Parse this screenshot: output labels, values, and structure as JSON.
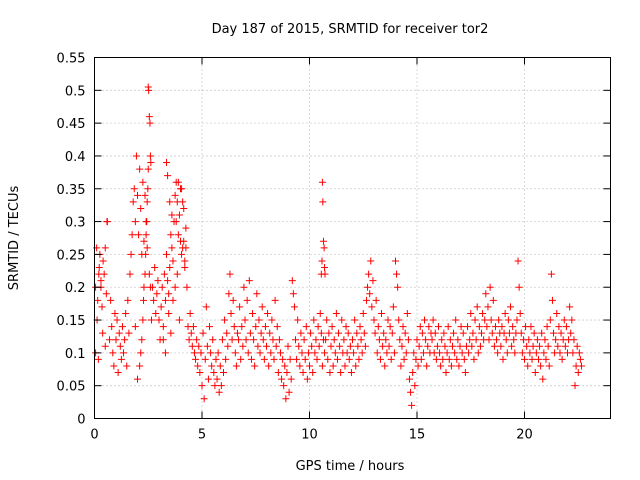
{
  "chart_data": {
    "type": "scatter",
    "title": "Day 187 of 2015, SRMTID for receiver tor2",
    "xlabel": "GPS time / hours",
    "ylabel": "SRMTID / TECUs",
    "xlim": [
      0,
      24
    ],
    "ylim": [
      0,
      0.55
    ],
    "xticks": [
      0,
      5,
      10,
      15,
      20
    ],
    "xtick_labels": [
      "0",
      "5",
      "10",
      "15",
      "20"
    ],
    "yticks": [
      0,
      0.05,
      0.1,
      0.15,
      0.2,
      0.25,
      0.3,
      0.35,
      0.4,
      0.45,
      0.5,
      0.55
    ],
    "ytick_labels": [
      "0",
      "0.05",
      "0.1",
      "0.15",
      "0.2",
      "0.25",
      "0.3",
      "0.35",
      "0.4",
      "0.45",
      "0.5",
      "0.55"
    ],
    "grid": true,
    "marker": "+",
    "color": "#ff0000",
    "series": [
      {
        "name": "SRMTID",
        "x": [
          0.05,
          0.1,
          0.15,
          0.2,
          0.25,
          0.3,
          0.35,
          0.4,
          0.45,
          0.5,
          0.55,
          0.6,
          0.05,
          0.12,
          0.18,
          0.22,
          0.3,
          0.38,
          0.5,
          0.58,
          0.7,
          0.75,
          0.8,
          0.85,
          0.9,
          0.95,
          1.0,
          1.05,
          1.1,
          1.15,
          1.2,
          1.25,
          1.3,
          1.35,
          1.4,
          1.45,
          1.5,
          1.55,
          1.6,
          1.65,
          1.7,
          1.75,
          1.8,
          1.85,
          1.9,
          1.95,
          2.0,
          2.05,
          2.1,
          2.15,
          2.2,
          2.25,
          2.3,
          2.35,
          2.4,
          2.45,
          2.5,
          2.55,
          2.6,
          2.65,
          2.5,
          2.52,
          2.55,
          2.58,
          2.6,
          2.62,
          2.48,
          2.45,
          2.43,
          2.4,
          2.38,
          2.35,
          2.3,
          2.28,
          2.25,
          2.2,
          2.15,
          2.1,
          2.0,
          1.9,
          2.7,
          2.75,
          2.8,
          2.85,
          2.9,
          2.95,
          3.0,
          3.05,
          3.1,
          3.15,
          3.2,
          3.25,
          3.3,
          3.35,
          3.4,
          3.45,
          3.5,
          3.55,
          3.6,
          3.65,
          3.7,
          3.75,
          3.8,
          3.85,
          3.9,
          3.95,
          4.0,
          4.05,
          4.1,
          4.15,
          4.2,
          4.25,
          3.35,
          3.4,
          3.5,
          3.6,
          3.8,
          3.9,
          4.0,
          4.1,
          3.2,
          3.3,
          3.45,
          3.55,
          3.65,
          3.75,
          3.85,
          3.95,
          4.05,
          4.15,
          4.2,
          4.25,
          4.3,
          4.35,
          4.4,
          4.45,
          4.5,
          4.55,
          4.6,
          4.65,
          4.7,
          4.75,
          4.8,
          4.85,
          4.9,
          4.95,
          5.0,
          5.05,
          5.1,
          5.15,
          5.2,
          5.25,
          5.3,
          5.35,
          5.4,
          5.45,
          5.5,
          5.55,
          5.6,
          5.65,
          5.7,
          5.75,
          5.8,
          5.85,
          5.9,
          5.95,
          6.0,
          6.05,
          6.1,
          6.15,
          6.2,
          6.25,
          6.3,
          6.35,
          6.4,
          6.45,
          6.5,
          6.55,
          6.6,
          6.65,
          6.7,
          6.75,
          6.8,
          6.85,
          6.9,
          6.95,
          7.0,
          7.05,
          7.1,
          7.15,
          7.2,
          7.25,
          7.3,
          7.35,
          7.4,
          7.45,
          7.5,
          7.55,
          7.6,
          7.65,
          7.7,
          7.75,
          7.8,
          7.85,
          7.9,
          7.95,
          8.0,
          8.05,
          8.1,
          8.15,
          8.2,
          8.25,
          8.3,
          8.35,
          8.4,
          8.45,
          8.5,
          8.55,
          8.6,
          8.65,
          8.7,
          8.75,
          8.8,
          8.85,
          8.9,
          8.95,
          9.0,
          9.05,
          9.1,
          9.15,
          9.2,
          9.25,
          9.3,
          9.35,
          9.4,
          9.45,
          9.5,
          9.55,
          9.6,
          9.65,
          9.7,
          9.75,
          9.8,
          9.85,
          9.9,
          9.95,
          10.0,
          10.05,
          10.1,
          10.15,
          10.2,
          10.25,
          10.3,
          10.35,
          10.4,
          10.45,
          10.5,
          10.55,
          10.6,
          10.65,
          10.6,
          10.62,
          10.65,
          10.68,
          10.7,
          10.72,
          10.55,
          10.58,
          10.7,
          10.75,
          10.8,
          10.85,
          10.9,
          10.95,
          11.0,
          11.05,
          11.1,
          11.15,
          11.2,
          11.25,
          11.3,
          11.35,
          11.4,
          11.45,
          11.5,
          11.55,
          11.6,
          11.65,
          11.7,
          11.75,
          11.8,
          11.85,
          11.9,
          11.95,
          12.0,
          12.05,
          12.1,
          12.15,
          12.2,
          12.25,
          12.3,
          12.35,
          12.4,
          12.45,
          12.5,
          12.55,
          12.6,
          12.65,
          12.7,
          12.75,
          12.8,
          12.85,
          12.9,
          12.95,
          13.0,
          13.05,
          13.1,
          13.15,
          13.2,
          13.25,
          13.3,
          13.35,
          13.4,
          13.45,
          13.5,
          13.55,
          13.6,
          13.65,
          13.7,
          13.75,
          13.8,
          13.85,
          13.9,
          13.95,
          14.0,
          14.05,
          14.1,
          14.15,
          14.2,
          14.25,
          14.3,
          14.35,
          14.4,
          14.45,
          14.5,
          14.55,
          14.6,
          14.65,
          14.7,
          14.75,
          14.8,
          14.85,
          14.9,
          14.95,
          15.0,
          15.05,
          15.1,
          15.15,
          15.2,
          15.25,
          15.3,
          15.35,
          15.4,
          15.45,
          15.5,
          15.55,
          15.6,
          15.65,
          15.7,
          15.75,
          15.8,
          15.85,
          15.9,
          15.95,
          16.0,
          16.05,
          16.1,
          16.15,
          16.2,
          16.25,
          16.3,
          16.35,
          16.4,
          16.45,
          16.5,
          16.55,
          16.6,
          16.65,
          16.7,
          16.75,
          16.8,
          16.85,
          16.9,
          16.95,
          17.0,
          17.05,
          17.1,
          17.15,
          17.2,
          17.25,
          17.3,
          17.35,
          17.4,
          17.45,
          17.5,
          17.55,
          17.6,
          17.65,
          17.7,
          17.75,
          17.8,
          17.85,
          17.9,
          17.95,
          18.0,
          18.05,
          18.1,
          18.15,
          18.2,
          18.25,
          18.3,
          18.35,
          18.4,
          18.45,
          18.5,
          18.55,
          18.6,
          18.65,
          18.7,
          18.75,
          18.8,
          18.85,
          18.9,
          18.95,
          19.0,
          19.05,
          19.1,
          19.15,
          19.2,
          19.25,
          19.3,
          19.35,
          19.4,
          19.45,
          19.5,
          19.55,
          19.6,
          19.65,
          19.7,
          19.75,
          19.8,
          19.85,
          19.9,
          19.95,
          20.0,
          20.05,
          20.1,
          20.15,
          20.2,
          20.25,
          20.3,
          20.35,
          20.4,
          20.45,
          20.5,
          20.55,
          20.6,
          20.65,
          20.7,
          20.75,
          20.8,
          20.85,
          20.9,
          20.95,
          21.0,
          21.05,
          21.1,
          21.15,
          21.2,
          21.25,
          21.3,
          21.35,
          21.4,
          21.45,
          21.5,
          21.55,
          21.6,
          21.65,
          21.7,
          21.75,
          21.8,
          21.85,
          21.9,
          21.95,
          22.0,
          22.05,
          22.1,
          22.15,
          22.2,
          22.25,
          22.3,
          22.35,
          22.4,
          22.45,
          22.5,
          22.55,
          22.6,
          22.65
        ],
        "y": [
          0.2,
          0.26,
          0.18,
          0.22,
          0.25,
          0.2,
          0.17,
          0.24,
          0.22,
          0.26,
          0.19,
          0.3,
          0.1,
          0.15,
          0.09,
          0.23,
          0.21,
          0.13,
          0.11,
          0.3,
          0.12,
          0.18,
          0.14,
          0.1,
          0.08,
          0.16,
          0.12,
          0.15,
          0.07,
          0.13,
          0.11,
          0.09,
          0.14,
          0.1,
          0.12,
          0.16,
          0.08,
          0.18,
          0.13,
          0.22,
          0.25,
          0.28,
          0.33,
          0.35,
          0.3,
          0.4,
          0.34,
          0.28,
          0.38,
          0.32,
          0.25,
          0.36,
          0.27,
          0.34,
          0.3,
          0.26,
          0.38,
          0.22,
          0.2,
          0.15,
          0.505,
          0.5,
          0.46,
          0.45,
          0.4,
          0.39,
          0.35,
          0.33,
          0.3,
          0.28,
          0.25,
          0.22,
          0.2,
          0.18,
          0.15,
          0.12,
          0.1,
          0.08,
          0.06,
          0.14,
          0.2,
          0.18,
          0.23,
          0.16,
          0.19,
          0.21,
          0.15,
          0.12,
          0.17,
          0.2,
          0.14,
          0.22,
          0.18,
          0.25,
          0.21,
          0.19,
          0.23,
          0.28,
          0.26,
          0.24,
          0.3,
          0.34,
          0.36,
          0.33,
          0.28,
          0.31,
          0.27,
          0.35,
          0.26,
          0.32,
          0.24,
          0.29,
          0.39,
          0.37,
          0.33,
          0.31,
          0.3,
          0.36,
          0.35,
          0.33,
          0.12,
          0.1,
          0.16,
          0.13,
          0.18,
          0.2,
          0.22,
          0.15,
          0.25,
          0.27,
          0.23,
          0.26,
          0.2,
          0.14,
          0.12,
          0.16,
          0.13,
          0.11,
          0.14,
          0.1,
          0.09,
          0.12,
          0.08,
          0.11,
          0.07,
          0.1,
          0.05,
          0.13,
          0.03,
          0.09,
          0.17,
          0.11,
          0.06,
          0.14,
          0.1,
          0.08,
          0.12,
          0.07,
          0.05,
          0.09,
          0.06,
          0.1,
          0.04,
          0.08,
          0.05,
          0.12,
          0.07,
          0.15,
          0.09,
          0.13,
          0.11,
          0.19,
          0.22,
          0.16,
          0.12,
          0.18,
          0.14,
          0.1,
          0.08,
          0.13,
          0.12,
          0.17,
          0.09,
          0.14,
          0.11,
          0.2,
          0.15,
          0.12,
          0.18,
          0.1,
          0.21,
          0.13,
          0.09,
          0.16,
          0.12,
          0.08,
          0.14,
          0.19,
          0.11,
          0.15,
          0.1,
          0.13,
          0.17,
          0.12,
          0.09,
          0.14,
          0.11,
          0.16,
          0.08,
          0.13,
          0.1,
          0.15,
          0.12,
          0.09,
          0.18,
          0.11,
          0.14,
          0.07,
          0.12,
          0.1,
          0.06,
          0.09,
          0.05,
          0.08,
          0.03,
          0.07,
          0.11,
          0.04,
          0.09,
          0.06,
          0.21,
          0.19,
          0.17,
          0.12,
          0.09,
          0.15,
          0.11,
          0.08,
          0.13,
          0.1,
          0.07,
          0.12,
          0.09,
          0.14,
          0.06,
          0.1,
          0.08,
          0.13,
          0.11,
          0.07,
          0.15,
          0.1,
          0.12,
          0.09,
          0.14,
          0.11,
          0.16,
          0.13,
          0.08,
          0.12,
          0.36,
          0.33,
          0.27,
          0.26,
          0.23,
          0.22,
          0.22,
          0.24,
          0.1,
          0.12,
          0.15,
          0.09,
          0.13,
          0.07,
          0.11,
          0.14,
          0.08,
          0.12,
          0.1,
          0.16,
          0.09,
          0.13,
          0.11,
          0.07,
          0.15,
          0.1,
          0.12,
          0.08,
          0.14,
          0.1,
          0.13,
          0.09,
          0.11,
          0.07,
          0.12,
          0.1,
          0.15,
          0.08,
          0.13,
          0.11,
          0.09,
          0.14,
          0.12,
          0.1,
          0.16,
          0.13,
          0.11,
          0.18,
          0.2,
          0.22,
          0.19,
          0.24,
          0.17,
          0.21,
          0.15,
          0.13,
          0.18,
          0.1,
          0.14,
          0.12,
          0.09,
          0.16,
          0.11,
          0.13,
          0.08,
          0.12,
          0.1,
          0.15,
          0.11,
          0.14,
          0.09,
          0.13,
          0.17,
          0.1,
          0.24,
          0.22,
          0.2,
          0.15,
          0.12,
          0.08,
          0.11,
          0.14,
          0.09,
          0.13,
          0.1,
          0.16,
          0.12,
          0.06,
          0.04,
          0.02,
          0.07,
          0.1,
          0.05,
          0.09,
          0.12,
          0.08,
          0.11,
          0.14,
          0.09,
          0.13,
          0.1,
          0.15,
          0.12,
          0.08,
          0.11,
          0.14,
          0.1,
          0.13,
          0.12,
          0.15,
          0.1,
          0.13,
          0.09,
          0.11,
          0.14,
          0.1,
          0.08,
          0.12,
          0.09,
          0.13,
          0.11,
          0.07,
          0.1,
          0.14,
          0.09,
          0.12,
          0.08,
          0.11,
          0.13,
          0.1,
          0.15,
          0.09,
          0.12,
          0.08,
          0.11,
          0.14,
          0.1,
          0.13,
          0.09,
          0.07,
          0.11,
          0.14,
          0.1,
          0.12,
          0.16,
          0.11,
          0.13,
          0.09,
          0.15,
          0.12,
          0.17,
          0.1,
          0.14,
          0.11,
          0.13,
          0.16,
          0.12,
          0.15,
          0.19,
          0.14,
          0.17,
          0.12,
          0.2,
          0.15,
          0.13,
          0.18,
          0.11,
          0.14,
          0.12,
          0.1,
          0.15,
          0.13,
          0.11,
          0.14,
          0.09,
          0.13,
          0.16,
          0.12,
          0.1,
          0.15,
          0.13,
          0.17,
          0.11,
          0.14,
          0.12,
          0.1,
          0.13,
          0.15,
          0.24,
          0.2,
          0.16,
          0.13,
          0.1,
          0.12,
          0.09,
          0.14,
          0.11,
          0.08,
          0.12,
          0.1,
          0.14,
          0.09,
          0.11,
          0.13,
          0.07,
          0.1,
          0.12,
          0.09,
          0.11,
          0.08,
          0.13,
          0.06,
          0.1,
          0.12,
          0.09,
          0.14,
          0.11,
          0.08,
          0.15,
          0.22,
          0.18,
          0.13,
          0.1,
          0.12,
          0.16,
          0.11,
          0.14,
          0.1,
          0.13,
          0.09,
          0.12,
          0.15,
          0.11,
          0.14,
          0.1,
          0.12,
          0.17,
          0.13,
          0.15,
          0.1,
          0.12,
          0.05,
          0.08,
          0.11,
          0.07,
          0.1,
          0.09,
          0.08
        ]
      }
    ]
  }
}
